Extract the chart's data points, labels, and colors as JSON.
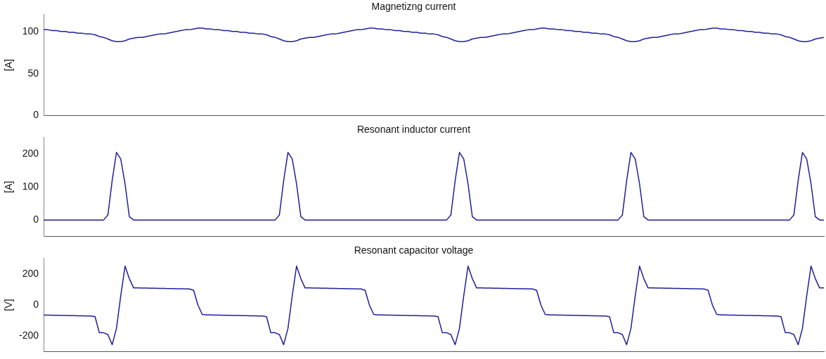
{
  "chart_data": [
    {
      "type": "line",
      "title": "Magnetizng current",
      "ylabel": "[A]",
      "ylim": [
        0,
        120
      ],
      "yticks": [
        0,
        50,
        100
      ],
      "tick_labels": "y",
      "grid": false,
      "marker": "none",
      "line_style": "solid",
      "categories": [
        null,
        null,
        null,
        null,
        null,
        null,
        null,
        null,
        null,
        null,
        null,
        null,
        null,
        null,
        null,
        null,
        null,
        null,
        null,
        null,
        null,
        null,
        null,
        null,
        null,
        null,
        null,
        null,
        null,
        null,
        null,
        null,
        null,
        null,
        null,
        null,
        null,
        null,
        null,
        null,
        null,
        null,
        null,
        null,
        null,
        null,
        null,
        null,
        null,
        null,
        null,
        null,
        null,
        null,
        null,
        null,
        null,
        null,
        null,
        null,
        null,
        null,
        null,
        null,
        null,
        null,
        null,
        null,
        null,
        null,
        null,
        null,
        null,
        null,
        null,
        null,
        null,
        null,
        null,
        null,
        null,
        null,
        null,
        null,
        null,
        null,
        null,
        null,
        null,
        null,
        null,
        null,
        null,
        null,
        null,
        null,
        null,
        null,
        null,
        null,
        null,
        null,
        null,
        null,
        null,
        null,
        null,
        null,
        null,
        null,
        null,
        null,
        null,
        null,
        null,
        null,
        null,
        null,
        null,
        null,
        null,
        null,
        null,
        null,
        null,
        null,
        null,
        null,
        null,
        null,
        null,
        null,
        null,
        null,
        null,
        null,
        null,
        null,
        null,
        null,
        null,
        null,
        null,
        null,
        null,
        null,
        null,
        null,
        null,
        null,
        null,
        null,
        null,
        null,
        null,
        null,
        null,
        null,
        null,
        null,
        null,
        null,
        null,
        null,
        null,
        null,
        null,
        null,
        null,
        null,
        null,
        null,
        null,
        null,
        null,
        null,
        null,
        null,
        null,
        null,
        null,
        null,
        null
      ],
      "series": [
        {
          "color": "#1f1f9e",
          "values": [
            102,
            102,
            101,
            101,
            100,
            100,
            99,
            99,
            98,
            98,
            97,
            97,
            96,
            94,
            93,
            91,
            89,
            88,
            88,
            89,
            91,
            92,
            93,
            93,
            94,
            95,
            96,
            97,
            97,
            98,
            99,
            100,
            101,
            102,
            102,
            103,
            104,
            104,
            103,
            103,
            102,
            102,
            101,
            101,
            100,
            100,
            99,
            99,
            98,
            98,
            97,
            97,
            96,
            94,
            93,
            91,
            89,
            88,
            88,
            89,
            91,
            92,
            93,
            93,
            94,
            95,
            96,
            97,
            97,
            98,
            99,
            100,
            101,
            102,
            102,
            103,
            104,
            104,
            103,
            103,
            102,
            102,
            101,
            101,
            100,
            100,
            99,
            99,
            98,
            98,
            97,
            97,
            96,
            94,
            93,
            91,
            89,
            88,
            88,
            89,
            91,
            92,
            93,
            93,
            94,
            95,
            96,
            97,
            97,
            98,
            99,
            100,
            101,
            102,
            102,
            103,
            104,
            104,
            103,
            103,
            102,
            102,
            101,
            101,
            100,
            100,
            99,
            99,
            98,
            98,
            97,
            97,
            96,
            94,
            93,
            91,
            89,
            88,
            88,
            89,
            91,
            92,
            93,
            93,
            94,
            95,
            96,
            97,
            97,
            98,
            99,
            100,
            101,
            102,
            102,
            103,
            104,
            104,
            103,
            103,
            102,
            102,
            101,
            101,
            100,
            100,
            99,
            99,
            98,
            98,
            97,
            97,
            96,
            94,
            93,
            91,
            89,
            88,
            88,
            89,
            91,
            92,
            93
          ]
        }
      ]
    },
    {
      "type": "line",
      "title": "Resonant inductor current",
      "ylabel": "[A]",
      "ylim": [
        -50,
        250
      ],
      "yticks": [
        0,
        100,
        200
      ],
      "tick_labels": "y",
      "grid": false,
      "marker": "none",
      "line_style": "solid",
      "categories": [
        null,
        null,
        null,
        null,
        null,
        null,
        null,
        null,
        null,
        null,
        null,
        null,
        null,
        null,
        null,
        null,
        null,
        null,
        null,
        null,
        null,
        null,
        null,
        null,
        null,
        null,
        null,
        null,
        null,
        null,
        null,
        null,
        null,
        null,
        null,
        null,
        null,
        null,
        null,
        null,
        null,
        null,
        null,
        null,
        null,
        null,
        null,
        null,
        null,
        null,
        null,
        null,
        null,
        null,
        null,
        null,
        null,
        null,
        null,
        null,
        null,
        null,
        null,
        null,
        null,
        null,
        null,
        null,
        null,
        null,
        null,
        null,
        null,
        null,
        null,
        null,
        null,
        null,
        null,
        null,
        null,
        null,
        null,
        null,
        null,
        null,
        null,
        null,
        null,
        null,
        null,
        null,
        null,
        null,
        null,
        null,
        null,
        null,
        null,
        null,
        null,
        null,
        null,
        null,
        null,
        null,
        null,
        null,
        null,
        null,
        null,
        null,
        null,
        null,
        null,
        null,
        null,
        null,
        null,
        null,
        null,
        null,
        null,
        null,
        null,
        null,
        null,
        null,
        null,
        null,
        null,
        null,
        null,
        null,
        null,
        null,
        null,
        null,
        null,
        null,
        null,
        null,
        null,
        null,
        null,
        null,
        null,
        null,
        null,
        null,
        null,
        null,
        null,
        null,
        null,
        null,
        null,
        null,
        null,
        null,
        null,
        null,
        null,
        null,
        null,
        null,
        null,
        null,
        null,
        null,
        null,
        null,
        null,
        null,
        null,
        null,
        null,
        null,
        null,
        null,
        null,
        null,
        null
      ],
      "series": [
        {
          "color": "#1f1f9e",
          "values": [
            0,
            0,
            0,
            0,
            0,
            0,
            0,
            0,
            0,
            0,
            0,
            0,
            0,
            0,
            0,
            15,
            120,
            205,
            185,
            110,
            10,
            0,
            0,
            0,
            0,
            0,
            0,
            0,
            0,
            0,
            0,
            0,
            0,
            0,
            0,
            0,
            0,
            0,
            0,
            0,
            0,
            0,
            0,
            0,
            0,
            0,
            0,
            0,
            0,
            0,
            0,
            0,
            0,
            0,
            0,
            15,
            120,
            205,
            185,
            110,
            10,
            0,
            0,
            0,
            0,
            0,
            0,
            0,
            0,
            0,
            0,
            0,
            0,
            0,
            0,
            0,
            0,
            0,
            0,
            0,
            0,
            0,
            0,
            0,
            0,
            0,
            0,
            0,
            0,
            0,
            0,
            0,
            0,
            0,
            0,
            15,
            120,
            205,
            185,
            110,
            10,
            0,
            0,
            0,
            0,
            0,
            0,
            0,
            0,
            0,
            0,
            0,
            0,
            0,
            0,
            0,
            0,
            0,
            0,
            0,
            0,
            0,
            0,
            0,
            0,
            0,
            0,
            0,
            0,
            0,
            0,
            0,
            0,
            0,
            0,
            15,
            120,
            205,
            185,
            110,
            10,
            0,
            0,
            0,
            0,
            0,
            0,
            0,
            0,
            0,
            0,
            0,
            0,
            0,
            0,
            0,
            0,
            0,
            0,
            0,
            0,
            0,
            0,
            0,
            0,
            0,
            0,
            0,
            0,
            0,
            0,
            0,
            0,
            0,
            0,
            15,
            120,
            205,
            185,
            110,
            10,
            0,
            0
          ]
        }
      ]
    },
    {
      "type": "line",
      "title": "Resonant capacitor voltage",
      "ylabel": "[V]",
      "ylim": [
        -300,
        300
      ],
      "yticks": [
        -200,
        0,
        200
      ],
      "tick_labels": "y",
      "grid": false,
      "marker": "none",
      "line_style": "solid",
      "categories": [
        null,
        null,
        null,
        null,
        null,
        null,
        null,
        null,
        null,
        null,
        null,
        null,
        null,
        null,
        null,
        null,
        null,
        null,
        null,
        null,
        null,
        null,
        null,
        null,
        null,
        null,
        null,
        null,
        null,
        null,
        null,
        null,
        null,
        null,
        null,
        null,
        null,
        null,
        null,
        null,
        null,
        null,
        null,
        null,
        null,
        null,
        null,
        null,
        null,
        null,
        null,
        null,
        null,
        null,
        null,
        null,
        null,
        null,
        null,
        null,
        null,
        null,
        null,
        null,
        null,
        null,
        null,
        null,
        null,
        null,
        null,
        null,
        null,
        null,
        null,
        null,
        null,
        null,
        null,
        null,
        null,
        null,
        null,
        null,
        null,
        null,
        null,
        null,
        null,
        null,
        null,
        null,
        null,
        null,
        null,
        null,
        null,
        null,
        null,
        null,
        null,
        null,
        null,
        null,
        null,
        null,
        null,
        null,
        null,
        null,
        null,
        null,
        null,
        null,
        null,
        null,
        null,
        null,
        null,
        null,
        null,
        null,
        null,
        null,
        null,
        null,
        null,
        null,
        null,
        null,
        null,
        null,
        null,
        null,
        null,
        null,
        null,
        null,
        null,
        null,
        null,
        null,
        null,
        null,
        null,
        null,
        null,
        null,
        null,
        null,
        null,
        null,
        null,
        null,
        null,
        null,
        null,
        null,
        null,
        null,
        null,
        null,
        null,
        null,
        null,
        null,
        null,
        null,
        null,
        null,
        null,
        null,
        null,
        null,
        null,
        null,
        null,
        null,
        null,
        null,
        null,
        null,
        null
      ],
      "series": [
        {
          "color": "#1f1f9e",
          "values": [
            -65,
            -65,
            -66,
            -66,
            -67,
            -67,
            -68,
            -68,
            -69,
            -69,
            -70,
            -70,
            -75,
            -178,
            -178,
            -190,
            -255,
            -150,
            60,
            250,
            170,
            110,
            110,
            109,
            109,
            108,
            108,
            107,
            107,
            106,
            106,
            105,
            105,
            104,
            104,
            95,
            0,
            -60,
            -63,
            -64,
            -65,
            -65,
            -66,
            -66,
            -67,
            -67,
            -68,
            -68,
            -69,
            -69,
            -70,
            -70,
            -75,
            -178,
            -178,
            -190,
            -255,
            -150,
            60,
            250,
            170,
            110,
            110,
            109,
            109,
            108,
            108,
            107,
            107,
            106,
            106,
            105,
            105,
            104,
            104,
            95,
            0,
            -60,
            -63,
            -64,
            -65,
            -65,
            -66,
            -66,
            -67,
            -67,
            -68,
            -68,
            -69,
            -69,
            -70,
            -70,
            -75,
            -178,
            -178,
            -190,
            -255,
            -150,
            60,
            250,
            170,
            110,
            110,
            109,
            109,
            108,
            108,
            107,
            107,
            106,
            106,
            105,
            105,
            104,
            104,
            95,
            0,
            -60,
            -63,
            -64,
            -65,
            -65,
            -66,
            -66,
            -67,
            -67,
            -68,
            -68,
            -69,
            -69,
            -70,
            -70,
            -75,
            -178,
            -178,
            -190,
            -255,
            -150,
            60,
            250,
            170,
            110,
            110,
            109,
            109,
            108,
            108,
            107,
            107,
            106,
            106,
            105,
            105,
            104,
            104,
            95,
            0,
            -60,
            -63,
            -64,
            -65,
            -65,
            -66,
            -66,
            -67,
            -67,
            -68,
            -68,
            -69,
            -69,
            -70,
            -70,
            -75,
            -178,
            -178,
            -190,
            -255,
            -150,
            60,
            250,
            170,
            110,
            110
          ]
        }
      ]
    }
  ]
}
